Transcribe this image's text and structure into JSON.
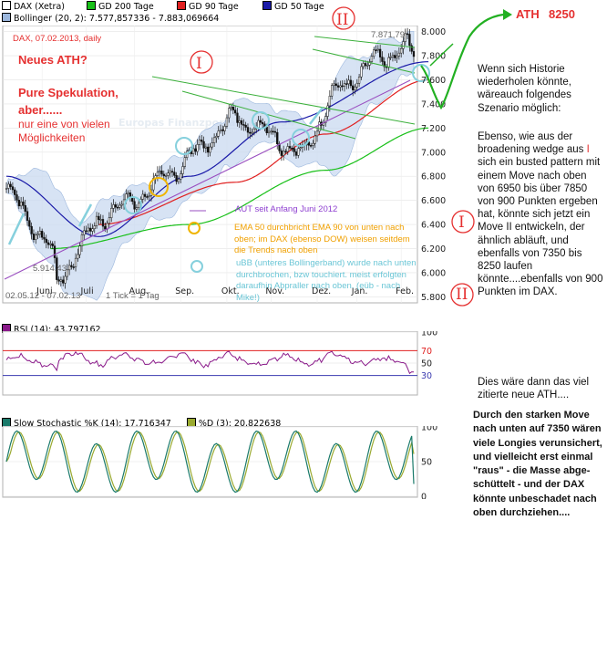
{
  "header": {
    "row1": [
      {
        "label": "DAX (Xetra)",
        "color": "#000000"
      },
      {
        "label": "GD 200 Tage",
        "color": "#18c018"
      },
      {
        "label": "GD 90 Tage",
        "color": "#e02020"
      },
      {
        "label": "GD 50 Tage",
        "color": "#1a1aa8"
      }
    ],
    "row2": {
      "label": "Bollinger (20, 2): 7.577,857336 - 7.883,069664",
      "color": "#9cb7dd"
    }
  },
  "main": {
    "info_label": "DAX, 07.02.2013,  daily",
    "date_range": "02.05.12 - 07.02.13",
    "tick_label": "1 Tick = 1 Tag",
    "high_label": "7.871,79",
    "low_label": "5.914,43",
    "y_ticks": [
      "8.000",
      "7.800",
      "7.600",
      "7.400",
      "7.200",
      "7.000",
      "6.800",
      "6.600",
      "6.400",
      "6.200",
      "6.000",
      "5.800"
    ],
    "x_months": [
      "Juni",
      "Juli",
      "Aug.",
      "Sep.",
      "Okt.",
      "Nov.",
      "Dez.",
      "Jan.",
      "Feb."
    ],
    "watermark": "Europas Finanzportal seit 1994"
  },
  "annotations": {
    "neues_ath": "Neues ATH?",
    "pure_spek_1": "Pure Spekulation,",
    "pure_spek_2": "aber......",
    "nur_eine_1": "nur eine von vielen",
    "nur_eine_2": "Möglichkeiten",
    "ath_label": "ATH",
    "ath_value": "8250",
    "roman_one": "I",
    "roman_two": "II",
    "aut_note": "AUT seit Anfang Juni 2012",
    "ema_note": "EMA 50 durchbricht EMA 90 von unten nach oben; im DAX (ebenso DOW) weisen seitdem die Trends nach oben",
    "boll_note": "uBB (unteres Bollingerband) wurde nach unten durchbrochen, bzw touchiert. meist erfolgten daraufhin Abpraller nach oben. (eüb - nach Mike!)"
  },
  "right_panel": {
    "text1": "Wenn sich Historie wiederholen könnte, wäreauch folgendes Szenario möglich:",
    "text2a": "Ebenso, wie aus der broadening  wedge aus",
    "text2b": "I",
    "text2c": "sich ein busted pattern mit einem Move nach oben von 6950 bis über 7850 von 900 Punkten ergeben hat, könnte sich jetzt ein Move",
    "text2d": "II",
    "text2e": "entwickeln, der ähnlich abläuft, und ebenfalls von  7350 bis 8250 laufen könnte....ebenfalls von 900 Punkten im DAX.",
    "text3": "Dies wäre dann das viel zitierte neue ATH....",
    "text4": "Durch den starken Move nach unten auf 7350 wären viele Longies verunsichert, und vielleicht erst einmal \"raus\" - die Masse abge- schüttelt - und der DAX könnte unbeschadet nach oben durchziehen...."
  },
  "rsi": {
    "label": "RSI (14): 43,797162",
    "ticks": [
      "100",
      "70",
      "50",
      "30"
    ],
    "color": "#8a1a8a"
  },
  "stoch": {
    "label_k": "Slow Stochastic %K (14): 17,716347",
    "label_d": "%D (3): 20,822638",
    "ticks": [
      "100",
      "50",
      "0"
    ],
    "color_k": "#1a7a6a",
    "color_d": "#9aaa30"
  },
  "chart_data": [
    {
      "type": "line",
      "title": "DAX, 07.02.2013,  daily",
      "x_range": [
        "02.05.12",
        "07.02.13"
      ],
      "ylim": [
        5750,
        8050
      ],
      "series": [
        {
          "name": "DAX (Xetra)",
          "key_points": [
            [
              "02.05.12",
              6700
            ],
            [
              "01.06.12",
              6200
            ],
            [
              "04.06.12",
              5914.43
            ],
            [
              "02.07.12",
              6450
            ],
            [
              "01.08.12",
              6650
            ],
            [
              "01.09.12",
              6950
            ],
            [
              "01.10.12",
              7300
            ],
            [
              "01.11.12",
              7100
            ],
            [
              "16.11.12",
              6950
            ],
            [
              "03.12.12",
              7450
            ],
            [
              "02.01.13",
              7750
            ],
            [
              "25.01.13",
              7871.79
            ],
            [
              "07.02.13",
              7650
            ]
          ]
        },
        {
          "name": "GD 200 Tage",
          "key_points": [
            [
              "01.06.12",
              6200
            ],
            [
              "01.09.12",
              6400
            ],
            [
              "01.12.12",
              6850
            ],
            [
              "07.02.13",
              7200
            ]
          ]
        },
        {
          "name": "GD 90 Tage",
          "key_points": [
            [
              "02.07.12",
              6400
            ],
            [
              "01.10.12",
              6750
            ],
            [
              "01.12.12",
              7150
            ],
            [
              "07.02.13",
              7600
            ]
          ]
        },
        {
          "name": "GD 50 Tage",
          "key_points": [
            [
              "02.05.12",
              6800
            ],
            [
              "02.07.12",
              6300
            ],
            [
              "01.09.12",
              6800
            ],
            [
              "01.11.12",
              7250
            ],
            [
              "07.02.13",
              7750
            ]
          ]
        }
      ],
      "y_ticks": [
        5800,
        6000,
        6200,
        6400,
        6600,
        6800,
        7000,
        7200,
        7400,
        7600,
        7800,
        8000
      ]
    },
    {
      "type": "line",
      "title": "RSI (14): 43,797162",
      "ylim": [
        0,
        100
      ],
      "levels": [
        30,
        70
      ],
      "series": [
        {
          "name": "RSI (14)",
          "last": 43.797162
        }
      ]
    },
    {
      "type": "line",
      "title": "Slow Stochastic %K (14)",
      "ylim": [
        0,
        100
      ],
      "series": [
        {
          "name": "%K (14)",
          "last": 17.716347
        },
        {
          "name": "%D (3)",
          "last": 20.822638
        }
      ]
    }
  ]
}
